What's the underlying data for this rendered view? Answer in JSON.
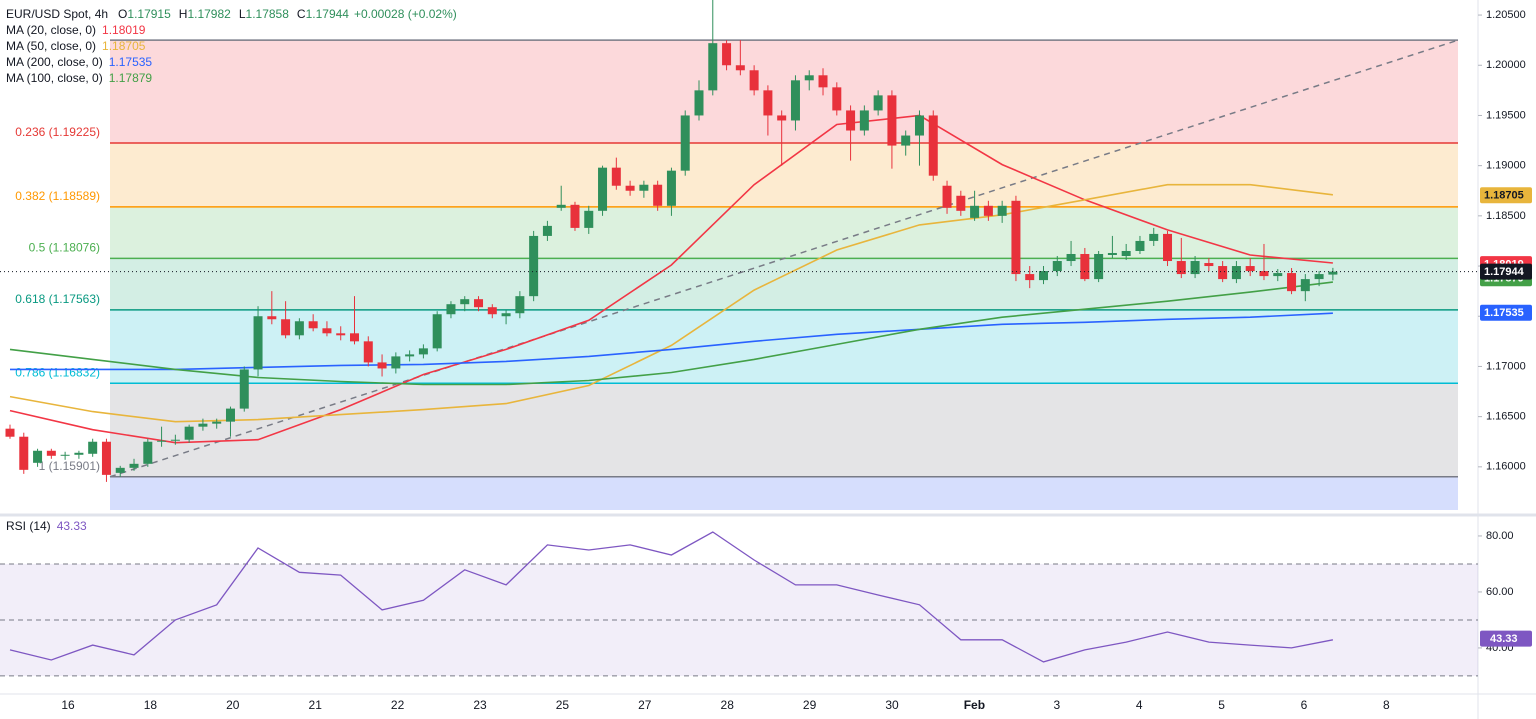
{
  "chart_data": {
    "type": "candlestick",
    "header": {
      "symbol": "EUR/USD Spot, 4h",
      "ohlc_labels": [
        "O",
        "H",
        "L",
        "C"
      ],
      "change": "+0.00028 (+0.02%)"
    },
    "up_color": "#2f8f5b",
    "down_color": "#e8313b",
    "ylim": [
      1.1557,
      1.2065
    ],
    "yticks": [
      {
        "value": 1.205,
        "label": "1.20500"
      },
      {
        "value": 1.2,
        "label": "1.20000"
      },
      {
        "value": 1.195,
        "label": "1.19500"
      },
      {
        "value": 1.19,
        "label": "1.19000"
      },
      {
        "value": 1.185,
        "label": "1.18500"
      },
      {
        "value": 1.18,
        "label": "1.18000"
      },
      {
        "value": 1.175,
        "label": "1.17500"
      },
      {
        "value": 1.17,
        "label": "1.17000"
      },
      {
        "value": 1.165,
        "label": "1.16500"
      },
      {
        "value": 1.16,
        "label": "1.16000"
      }
    ],
    "categories": [
      "16",
      "18",
      "20",
      "21",
      "22",
      "23",
      "25",
      "27",
      "28",
      "29",
      "30",
      "Feb",
      "3",
      "4",
      "5",
      "6",
      "8"
    ],
    "ohlc": [
      [
        1.1638,
        1.1642,
        1.1628,
        1.163
      ],
      [
        1.163,
        1.1634,
        1.1593,
        1.1597
      ],
      [
        1.1604,
        1.1618,
        1.16,
        1.1616
      ],
      [
        1.1616,
        1.1618,
        1.1608,
        1.1611
      ],
      [
        1.1611,
        1.1615,
        1.1607,
        1.1612
      ],
      [
        1.1612,
        1.1616,
        1.1608,
        1.1614
      ],
      [
        1.1613,
        1.1628,
        1.161,
        1.1625
      ],
      [
        1.1625,
        1.1628,
        1.1585,
        1.1592
      ],
      [
        1.1594,
        1.1601,
        1.159,
        1.1599
      ],
      [
        1.1599,
        1.1608,
        1.1596,
        1.1603
      ],
      [
        1.1603,
        1.1628,
        1.16,
        1.1625
      ],
      [
        1.1625,
        1.164,
        1.162,
        1.1626
      ],
      [
        1.1626,
        1.1632,
        1.1622,
        1.1627
      ],
      [
        1.1627,
        1.1642,
        1.1624,
        1.164
      ],
      [
        1.164,
        1.1648,
        1.1636,
        1.1643
      ],
      [
        1.1643,
        1.1648,
        1.1638,
        1.1645
      ],
      [
        1.1645,
        1.166,
        1.163,
        1.1658
      ],
      [
        1.1658,
        1.17,
        1.1655,
        1.1697
      ],
      [
        1.1697,
        1.176,
        1.169,
        1.175
      ],
      [
        1.175,
        1.1775,
        1.1742,
        1.1747
      ],
      [
        1.1747,
        1.1765,
        1.1728,
        1.1731
      ],
      [
        1.1731,
        1.1748,
        1.1727,
        1.1745
      ],
      [
        1.1745,
        1.1752,
        1.1735,
        1.1738
      ],
      [
        1.1738,
        1.1745,
        1.173,
        1.1733
      ],
      [
        1.1733,
        1.174,
        1.1726,
        1.1731
      ],
      [
        1.1733,
        1.177,
        1.1722,
        1.1725
      ],
      [
        1.1725,
        1.173,
        1.17,
        1.1704
      ],
      [
        1.1704,
        1.1712,
        1.169,
        1.1698
      ],
      [
        1.1698,
        1.1714,
        1.1693,
        1.171
      ],
      [
        1.171,
        1.1716,
        1.1705,
        1.1712
      ],
      [
        1.1712,
        1.1722,
        1.1708,
        1.1718
      ],
      [
        1.1718,
        1.1755,
        1.1715,
        1.1752
      ],
      [
        1.1752,
        1.1765,
        1.1748,
        1.1762
      ],
      [
        1.1762,
        1.177,
        1.1755,
        1.1767
      ],
      [
        1.1767,
        1.177,
        1.1755,
        1.1759
      ],
      [
        1.1759,
        1.1762,
        1.1748,
        1.1752
      ],
      [
        1.175,
        1.1756,
        1.1742,
        1.1753
      ],
      [
        1.1753,
        1.1775,
        1.1748,
        1.177
      ],
      [
        1.177,
        1.1835,
        1.1765,
        1.183
      ],
      [
        1.183,
        1.1845,
        1.1825,
        1.184
      ],
      [
        1.1858,
        1.188,
        1.1855,
        1.1861
      ],
      [
        1.1861,
        1.1864,
        1.1835,
        1.1838
      ],
      [
        1.1838,
        1.186,
        1.1832,
        1.1855
      ],
      [
        1.1855,
        1.19,
        1.185,
        1.1898
      ],
      [
        1.1898,
        1.1908,
        1.1876,
        1.188
      ],
      [
        1.188,
        1.1885,
        1.187,
        1.1875
      ],
      [
        1.1875,
        1.1885,
        1.1868,
        1.1881
      ],
      [
        1.1881,
        1.1885,
        1.1855,
        1.186
      ],
      [
        1.186,
        1.1898,
        1.185,
        1.1895
      ],
      [
        1.1895,
        1.1955,
        1.189,
        1.195
      ],
      [
        1.195,
        1.1985,
        1.1945,
        1.1975
      ],
      [
        1.1975,
        1.2065,
        1.197,
        1.2022
      ],
      [
        1.2022,
        1.2025,
        1.1995,
        1.2
      ],
      [
        1.2,
        1.2025,
        1.199,
        1.1995
      ],
      [
        1.1995,
        1.2,
        1.197,
        1.1975
      ],
      [
        1.1975,
        1.198,
        1.193,
        1.195
      ],
      [
        1.195,
        1.1955,
        1.19,
        1.1945
      ],
      [
        1.1945,
        1.199,
        1.1935,
        1.1985
      ],
      [
        1.1985,
        1.1995,
        1.1975,
        1.199
      ],
      [
        1.199,
        1.1997,
        1.197,
        1.1978
      ],
      [
        1.1978,
        1.1983,
        1.195,
        1.1955
      ],
      [
        1.1955,
        1.196,
        1.1905,
        1.1935
      ],
      [
        1.1935,
        1.196,
        1.193,
        1.1955
      ],
      [
        1.1955,
        1.1975,
        1.195,
        1.197
      ],
      [
        1.197,
        1.1975,
        1.1897,
        1.192
      ],
      [
        1.192,
        1.1935,
        1.191,
        1.193
      ],
      [
        1.193,
        1.1955,
        1.19,
        1.195
      ],
      [
        1.195,
        1.1955,
        1.1885,
        1.189
      ],
      [
        1.188,
        1.1885,
        1.1852,
        1.1858
      ],
      [
        1.187,
        1.1875,
        1.185,
        1.1855
      ],
      [
        1.1848,
        1.1875,
        1.1845,
        1.186
      ],
      [
        1.186,
        1.1865,
        1.1845,
        1.185
      ],
      [
        1.185,
        1.1865,
        1.1843,
        1.186
      ],
      [
        1.1865,
        1.187,
        1.1785,
        1.1792
      ],
      [
        1.1792,
        1.18,
        1.1778,
        1.1786
      ],
      [
        1.1786,
        1.18,
        1.1782,
        1.1795
      ],
      [
        1.1795,
        1.181,
        1.179,
        1.1805
      ],
      [
        1.1805,
        1.1825,
        1.18,
        1.1812
      ],
      [
        1.1812,
        1.1818,
        1.1785,
        1.1787
      ],
      [
        1.1787,
        1.1815,
        1.1784,
        1.1812
      ],
      [
        1.1811,
        1.183,
        1.1808,
        1.1813
      ],
      [
        1.181,
        1.1822,
        1.1806,
        1.1815
      ],
      [
        1.1815,
        1.183,
        1.1812,
        1.1825
      ],
      [
        1.1825,
        1.1838,
        1.182,
        1.1832
      ],
      [
        1.1832,
        1.1835,
        1.18,
        1.1805
      ],
      [
        1.1805,
        1.1828,
        1.1788,
        1.1792
      ],
      [
        1.1792,
        1.181,
        1.1788,
        1.1805
      ],
      [
        1.1803,
        1.1808,
        1.1795,
        1.18
      ],
      [
        1.18,
        1.1805,
        1.1784,
        1.1787
      ],
      [
        1.1787,
        1.1805,
        1.1783,
        1.18
      ],
      [
        1.18,
        1.1808,
        1.179,
        1.1795
      ],
      [
        1.1795,
        1.1822,
        1.1786,
        1.179
      ],
      [
        1.179,
        1.1797,
        1.1785,
        1.1793
      ],
      [
        1.1793,
        1.1798,
        1.1772,
        1.1775
      ],
      [
        1.1775,
        1.1792,
        1.1765,
        1.1787
      ],
      [
        1.1787,
        1.1795,
        1.178,
        1.1792
      ],
      [
        1.17915,
        1.17982,
        1.17858,
        1.17944
      ]
    ],
    "series": [
      {
        "name": "MA (20, close, 0)",
        "color": "#f23645",
        "last": 1.18019,
        "text_color": "#ffffff",
        "values": [
          1.1656,
          1.1637,
          1.1624,
          1.1627,
          1.1657,
          1.1692,
          1.1717,
          1.1746,
          1.1801,
          1.1881,
          1.1941,
          1.195,
          1.1901,
          1.1866,
          1.1836,
          1.1811,
          1.1803
        ]
      },
      {
        "name": "MA (50, close, 0)",
        "color": "#e8b53c",
        "last": 1.18705,
        "text_color": "#131722",
        "values": [
          1.167,
          1.1655,
          1.1645,
          1.1647,
          1.1652,
          1.1657,
          1.1663,
          1.1681,
          1.1721,
          1.1776,
          1.1816,
          1.1841,
          1.1851,
          1.1866,
          1.1881,
          1.1881,
          1.1871
        ]
      },
      {
        "name": "MA (200, close, 0)",
        "color": "#2962ff",
        "last": 1.17535,
        "text_color": "#ffffff",
        "values": [
          1.1697,
          1.1697,
          1.1697,
          1.1699,
          1.1701,
          1.1702,
          1.1705,
          1.171,
          1.1717,
          1.1725,
          1.1732,
          1.1737,
          1.1742,
          1.1744,
          1.1747,
          1.1749,
          1.1753
        ]
      },
      {
        "name": "MA (100, close, 0)",
        "color": "#43a047",
        "last": 1.17879,
        "text_color": "#ffffff",
        "values": [
          1.1717,
          1.1707,
          1.1697,
          1.1689,
          1.1685,
          1.1682,
          1.1682,
          1.1686,
          1.1694,
          1.1707,
          1.1722,
          1.1737,
          1.1749,
          1.1757,
          1.1765,
          1.1774,
          1.1784
        ]
      }
    ],
    "fib": {
      "levels": [
        {
          "value": 1.2025,
          "color": "#787b86",
          "fill": "#fcd9db"
        },
        {
          "value": 1.19225,
          "label": "0.236 (1.19225)",
          "color": "#e53935",
          "fill": "#fdebd0"
        },
        {
          "value": 1.18589,
          "label": "0.382 (1.18589)",
          "color": "#ff9800",
          "fill": "#dcf1de"
        },
        {
          "value": 1.18076,
          "label": "0.5 (1.18076)",
          "color": "#4caf50",
          "fill": "#d3eee4"
        },
        {
          "value": 1.17563,
          "label": "0.618 (1.17563)",
          "color": "#089981",
          "fill": "#cdf1f5"
        },
        {
          "value": 1.16832,
          "label": "0.786 (1.16832)",
          "color": "#00bcd4",
          "fill": "#e4e4e6"
        },
        {
          "value": 1.15901,
          "label": "1 (1.15901)",
          "color": "#787b86",
          "fill": "#d6defd"
        }
      ]
    },
    "rsi": {
      "name": "RSI (14)",
      "color": "#7e57c2",
      "last": 43.33,
      "ylim": [
        21.4,
        85.7
      ],
      "yticks": [
        {
          "value": 80,
          "label": "80.00"
        },
        {
          "value": 60,
          "label": "60.00"
        },
        {
          "value": 40,
          "label": "40.00"
        }
      ],
      "levels": [
        70,
        50,
        30
      ],
      "values": [
        39.3,
        35.7,
        41,
        37.5,
        50,
        55.4,
        75.7,
        67,
        66,
        53.6,
        57,
        67.9,
        62.5,
        76.8,
        75,
        76.8,
        73.2,
        81.4,
        71.4,
        62.5,
        62.5,
        58.9,
        55.4,
        42.9,
        42.9,
        35,
        39.3,
        42.1,
        45.7,
        42.1,
        41,
        40,
        42.9
      ]
    }
  }
}
